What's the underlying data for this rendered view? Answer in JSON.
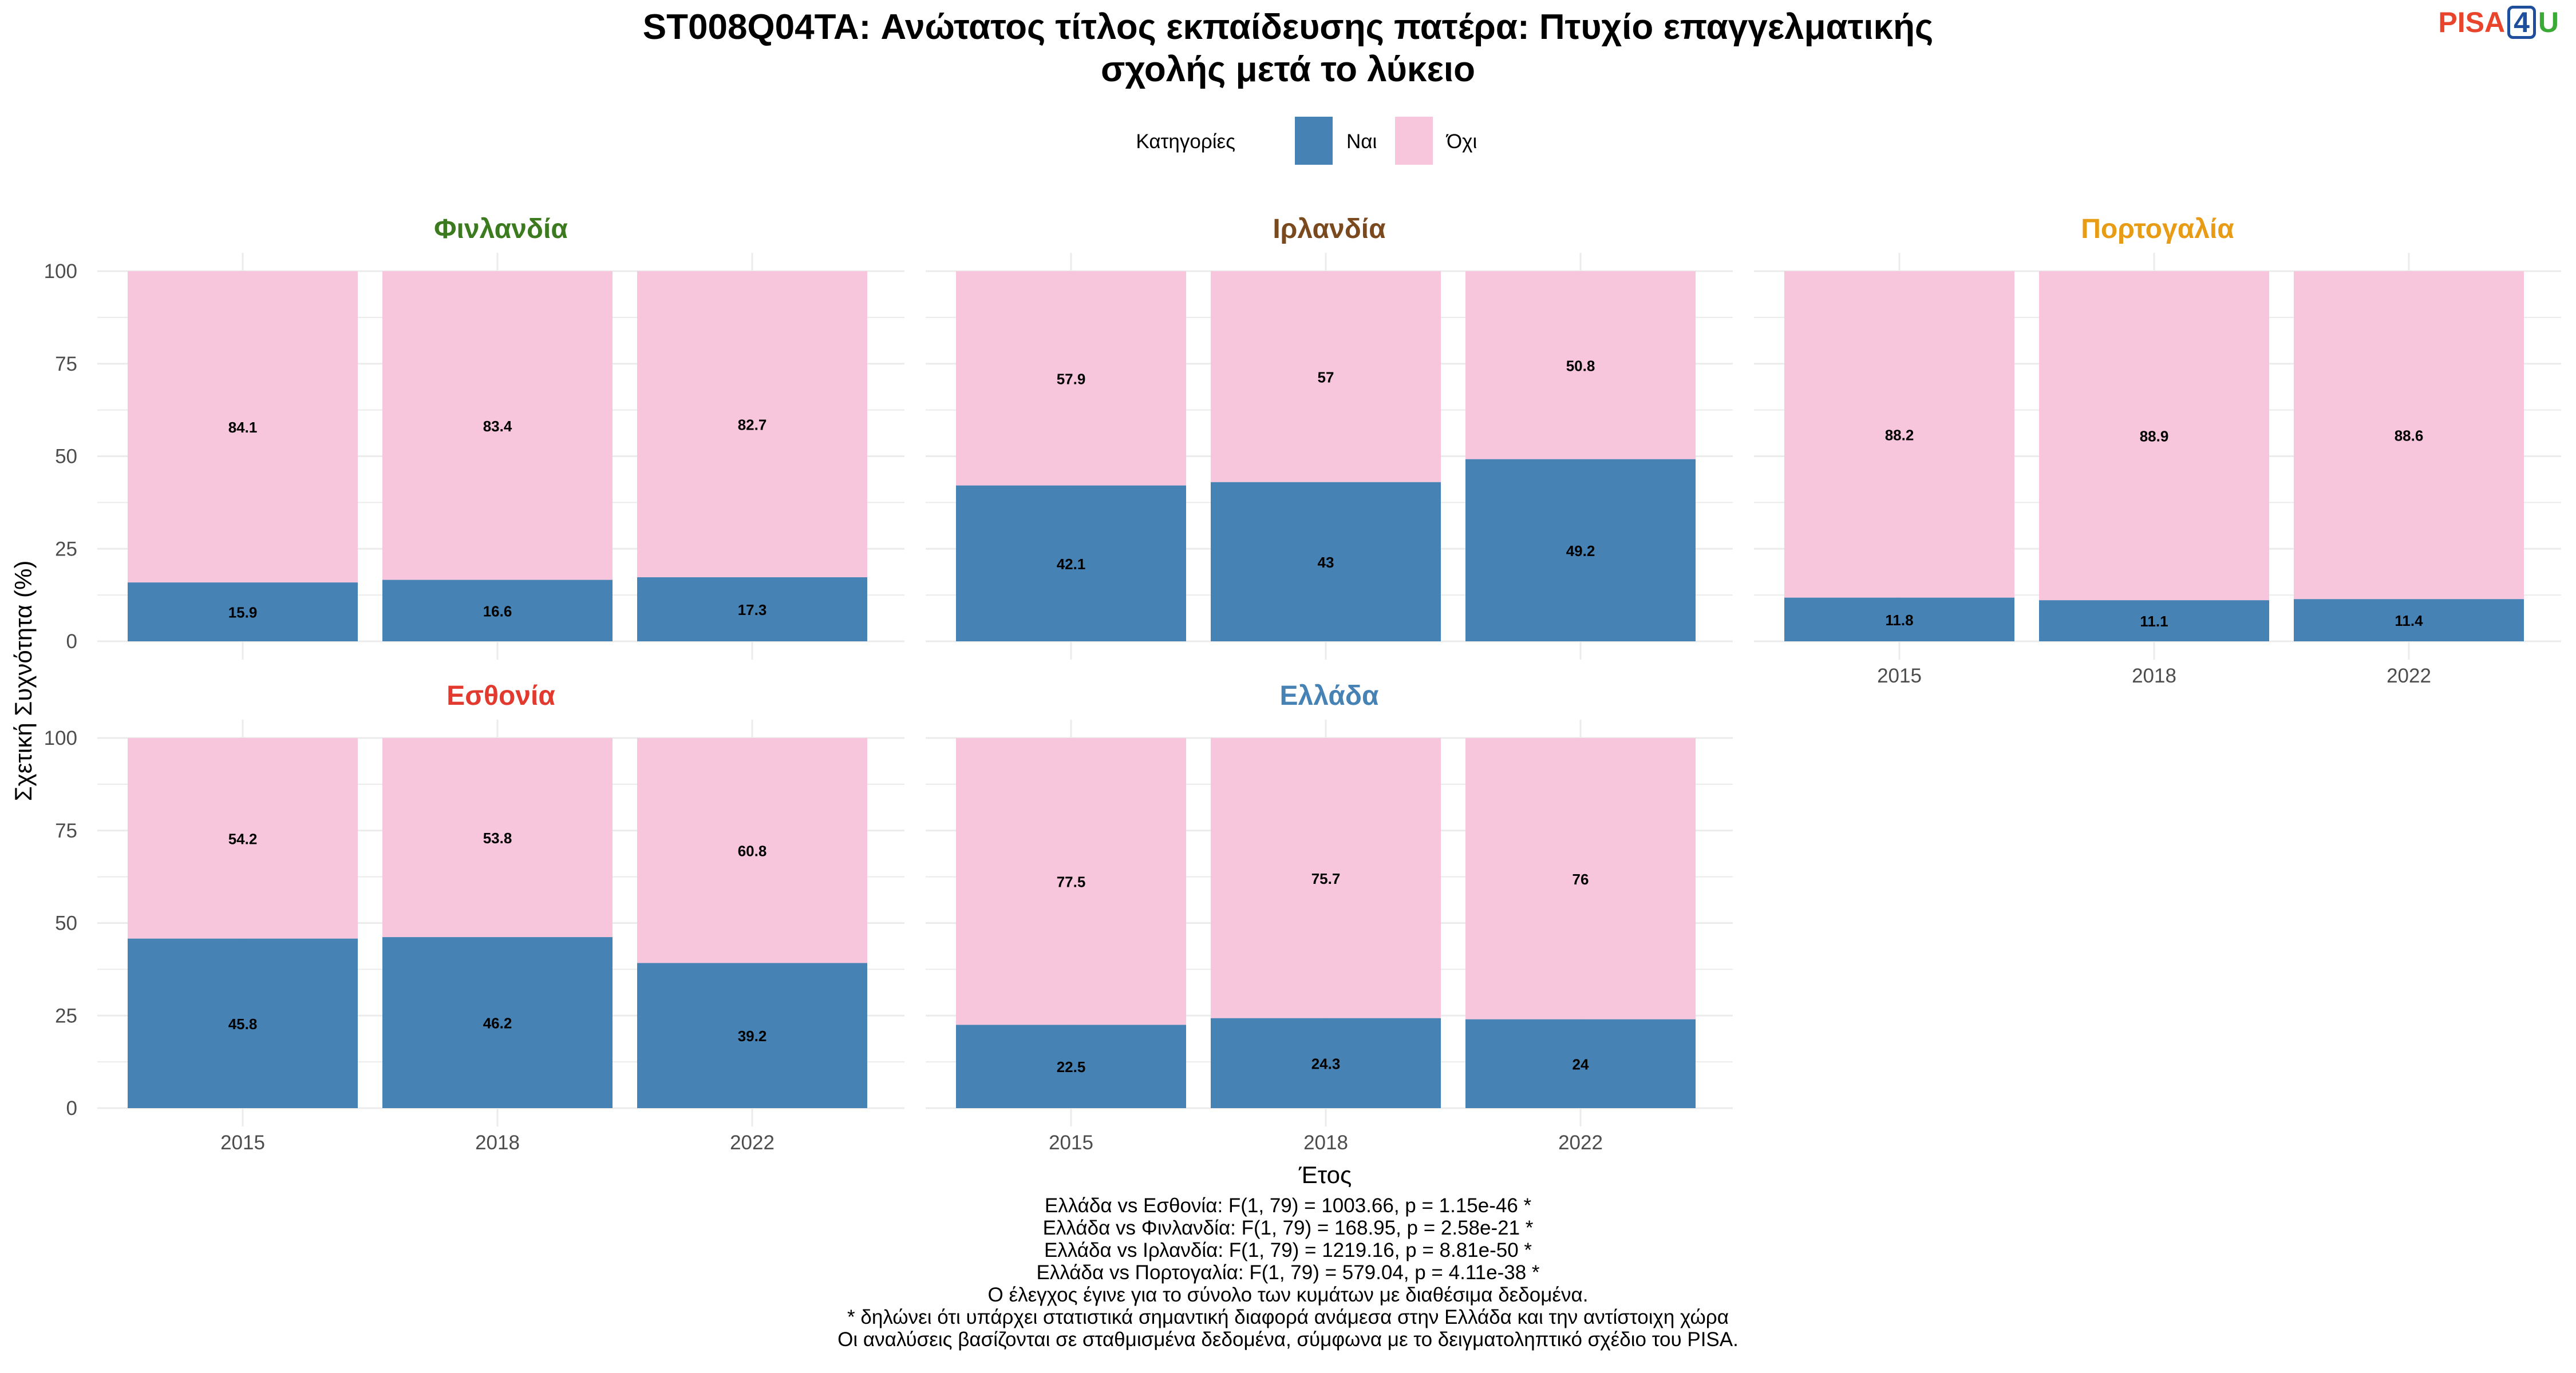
{
  "title_lines": [
    "ST008Q04TA: Ανώτατος τίτλος εκπαίδευσης πατέρα: Πτυχίο επαγγελματικής",
    "σχολής μετά το λύκειο"
  ],
  "logo": {
    "part1": "PISA",
    "part2": "4",
    "part3": "U"
  },
  "legend": {
    "title": "Κατηγορίες",
    "items": [
      {
        "label": "Ναι",
        "color": "#4682B4"
      },
      {
        "label": "Όχι",
        "color": "#F7C6DC"
      }
    ]
  },
  "colors": {
    "yes": "#4682B4",
    "no": "#F7C6DC",
    "grid": "#EBEBEB"
  },
  "chart_data": {
    "type": "bar",
    "stacked": true,
    "categories": [
      "2015",
      "2018",
      "2022"
    ],
    "xlabel": "Έτος",
    "ylabel": "Σχετική Συχνότητα (%)",
    "ylim": [
      0,
      100
    ],
    "yticks": [
      0,
      25,
      50,
      75,
      100
    ],
    "grid": true,
    "legend_position": "top",
    "panels": [
      {
        "name": "Φινλανδία",
        "color": "#3B7A1E",
        "series": [
          {
            "name": "Ναι",
            "values": [
              15.9,
              16.6,
              17.3
            ]
          },
          {
            "name": "Όχι",
            "values": [
              84.1,
              83.4,
              82.7
            ]
          }
        ],
        "labels": {
          "Ναι": [
            "15.9",
            "16.6",
            "17.3"
          ],
          "Όχι": [
            "84.1",
            "83.4",
            "82.7"
          ]
        }
      },
      {
        "name": "Ιρλανδία",
        "color": "#7A4A1E",
        "series": [
          {
            "name": "Ναι",
            "values": [
              42.1,
              43,
              49.2
            ]
          },
          {
            "name": "Όχι",
            "values": [
              57.9,
              57,
              50.8
            ]
          }
        ],
        "labels": {
          "Ναι": [
            "42.1",
            "43",
            "49.2"
          ],
          "Όχι": [
            "57.9",
            "57",
            "50.8"
          ]
        }
      },
      {
        "name": "Πορτογαλία",
        "color": "#E89B14",
        "series": [
          {
            "name": "Ναι",
            "values": [
              11.8,
              11.1,
              11.4
            ]
          },
          {
            "name": "Όχι",
            "values": [
              88.2,
              88.9,
              88.6
            ]
          }
        ],
        "labels": {
          "Ναι": [
            "11.8",
            "11.1",
            "11.4"
          ],
          "Όχι": [
            "88.2",
            "88.9",
            "88.6"
          ]
        }
      },
      {
        "name": "Εσθονία",
        "color": "#E23A2E",
        "series": [
          {
            "name": "Ναι",
            "values": [
              45.8,
              46.2,
              39.2
            ]
          },
          {
            "name": "Όχι",
            "values": [
              54.2,
              53.8,
              60.8
            ]
          }
        ],
        "labels": {
          "Ναι": [
            "45.8",
            "46.2",
            "39.2"
          ],
          "Όχι": [
            "54.2",
            "53.8",
            "60.8"
          ]
        }
      },
      {
        "name": "Ελλάδα",
        "color": "#4682B4",
        "series": [
          {
            "name": "Ναι",
            "values": [
              22.5,
              24.3,
              24
            ]
          },
          {
            "name": "Όχι",
            "values": [
              77.5,
              75.7,
              76
            ]
          }
        ],
        "labels": {
          "Ναι": [
            "22.5",
            "24.3",
            "24"
          ],
          "Όχι": [
            "77.5",
            "75.7",
            "76"
          ]
        }
      }
    ]
  },
  "notes": [
    "Ελλάδα vs Εσθονία: F(1, 79) = 1003.66, p = 1.15e-46 *",
    "Ελλάδα vs Φινλανδία: F(1, 79) = 168.95, p = 2.58e-21 *",
    "Ελλάδα vs Ιρλανδία: F(1, 79) = 1219.16, p = 8.81e-50 *",
    "Ελλάδα vs Πορτογαλία: F(1, 79) = 579.04, p = 4.11e-38 *",
    "Ο έλεγχος έγινε για το σύνολο των κυμάτων με διαθέσιμα δεδομένα.",
    "* δηλώνει ότι υπάρχει στατιστικά σημαντική διαφορά ανάμεσα στην Ελλάδα και την αντίστοιχη χώρα",
    "Οι αναλύσεις βασίζονται σε σταθμισμένα δεδομένα, σύμφωνα με το δειγματοληπτικό σχέδιο του PISA."
  ]
}
